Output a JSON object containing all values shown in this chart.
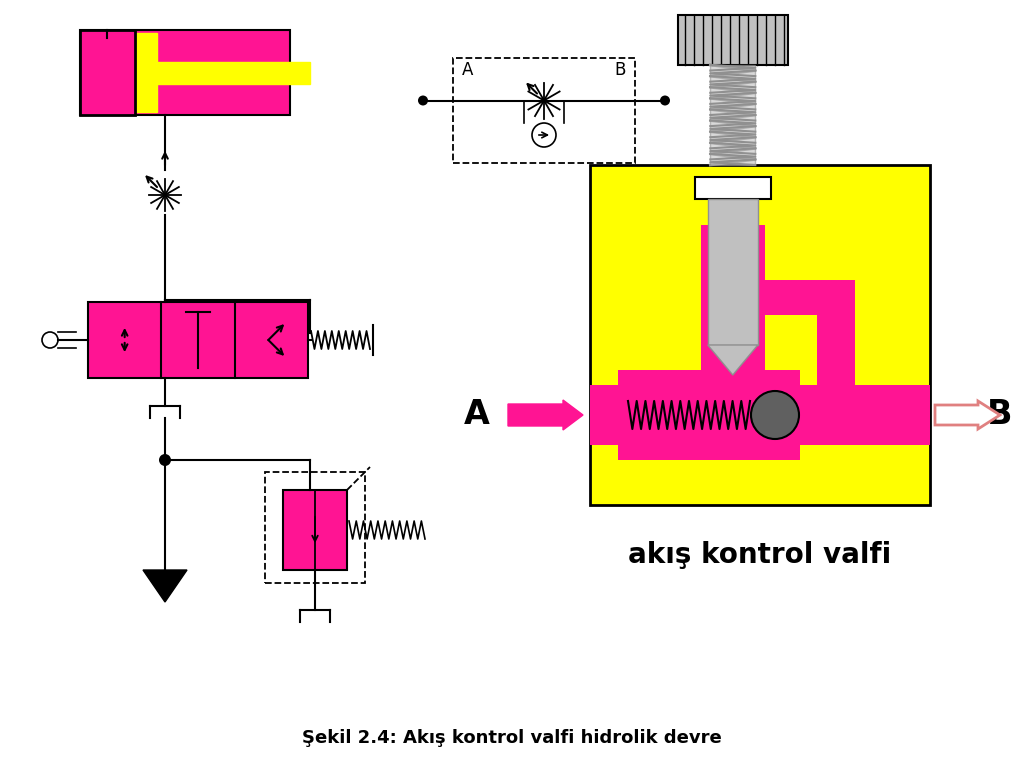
{
  "title": "Şekil 2.4: Akış kontrol valfi hidrolik devre",
  "title_fontsize": 13,
  "background_color": "#ffffff",
  "pink": "#FF1493",
  "yellow": "#FFFF00",
  "gray": "#909090",
  "dark_gray": "#606060",
  "light_gray": "#C0C0C0",
  "akis_label": "akış kontrol valfi",
  "A_label": "A",
  "B_label": "B"
}
